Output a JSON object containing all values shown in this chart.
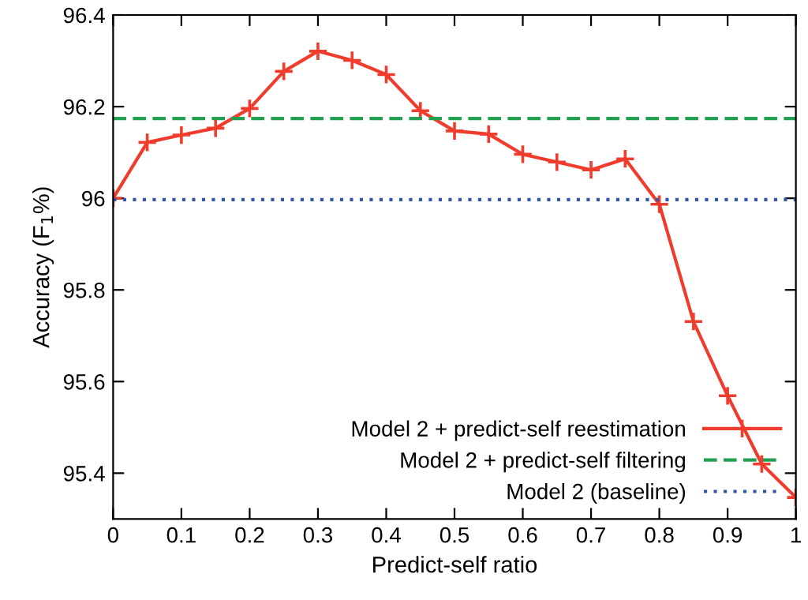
{
  "chart_data": {
    "type": "line",
    "xlabel": "Predict-self ratio",
    "ylabel": "Accuracy (F$_{1}$%)",
    "xlim": [
      0,
      1
    ],
    "ylim": [
      95.3,
      96.4
    ],
    "xticks": [
      0,
      0.1,
      0.2,
      0.3,
      0.4,
      0.5,
      0.6,
      0.7,
      0.8,
      0.9,
      1
    ],
    "yticks": [
      {
        "value": 95.4,
        "label": "95.4"
      },
      {
        "value": 95.6,
        "label": "95.6"
      },
      {
        "value": 95.8,
        "label": "95.8"
      },
      {
        "value": 96,
        "label": "96"
      },
      {
        "value": 96.2,
        "label": "96.2"
      },
      {
        "value": 96.4,
        "label": "96.4"
      }
    ],
    "grid": false,
    "legend": "bottom right",
    "series": [
      {
        "name": "Model 2 + predict-self reestimation",
        "color": "#f03c2c",
        "marker": "cross",
        "line_style": "solid",
        "x": [
          0,
          0.05,
          0.1,
          0.15,
          0.2,
          0.25,
          0.3,
          0.35,
          0.4,
          0.45,
          0.5,
          0.55,
          0.6,
          0.65,
          0.7,
          0.75,
          0.8,
          0.85,
          0.9,
          0.95,
          1
        ],
        "values": [
          96.0,
          96.122,
          96.138,
          96.153,
          96.196,
          96.277,
          96.321,
          96.301,
          96.27,
          96.191,
          96.147,
          96.14,
          96.096,
          96.079,
          96.062,
          96.086,
          95.987,
          95.731,
          95.569,
          95.42,
          95.347
        ]
      },
      {
        "name": "Model 2 + predict-self filtering",
        "color": "#22a050",
        "marker": "none",
        "line_style": "dashed",
        "x": [
          0,
          1
        ],
        "values": [
          96.174,
          96.174
        ]
      },
      {
        "name": "Model 2 (baseline)",
        "color": "#3456a8",
        "marker": "none",
        "line_style": "dotted",
        "x": [
          0,
          1
        ],
        "values": [
          95.997,
          95.997
        ]
      }
    ]
  }
}
